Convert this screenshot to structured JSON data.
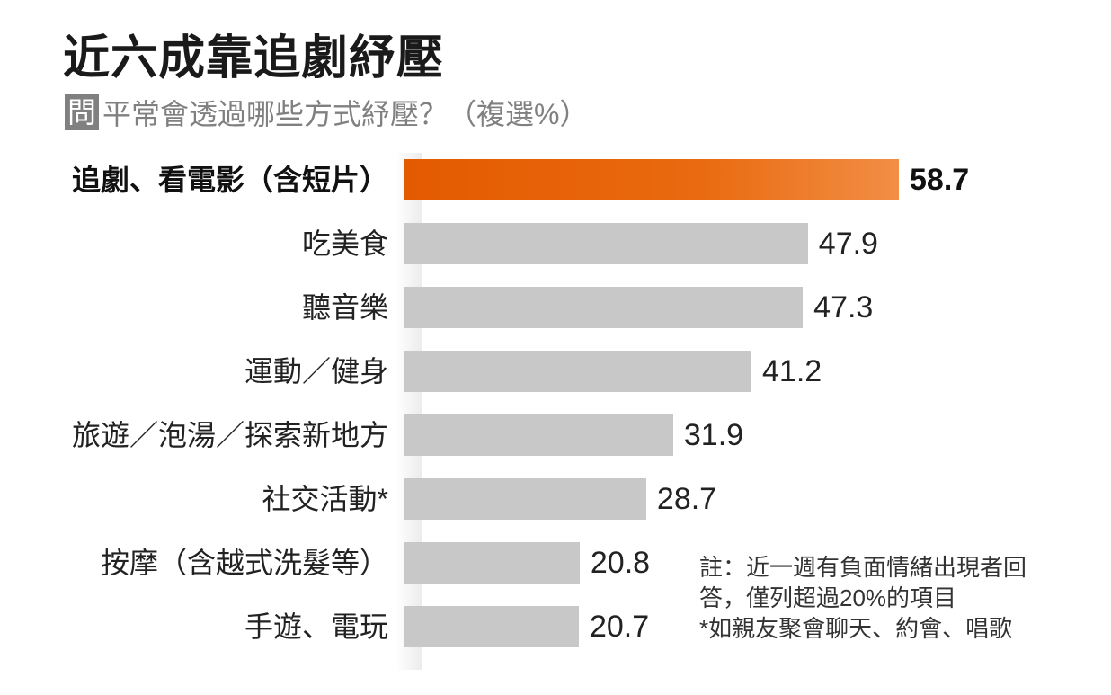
{
  "chart_data": {
    "type": "bar",
    "orientation": "horizontal",
    "title": "近六成靠追劇紓壓",
    "question_marker": "問",
    "subtitle": "平常會透過哪些方式紓壓？（複選%）",
    "categories": [
      "追劇、看電影（含短片）",
      "吃美食",
      "聽音樂",
      "運動／健身",
      "旅遊／泡湯／探索新地方",
      "社交活動*",
      "按摩（含越式洗髮等）",
      "手遊、電玩"
    ],
    "values": [
      58.7,
      47.9,
      47.3,
      41.2,
      31.9,
      28.7,
      20.8,
      20.7
    ],
    "value_labels": [
      "58.7",
      "47.9",
      "47.3",
      "41.2",
      "31.9",
      "28.7",
      "20.8",
      "20.7"
    ],
    "highlight_index": 0,
    "xlim": [
      0,
      58.7
    ],
    "grid": false,
    "colors": {
      "highlight": "#e96a10",
      "default": "#c8c8c8"
    },
    "notes": [
      "註：近一週有負面情緒出現者回",
      "答，僅列超過20%的項目",
      "*如親友聚會聊天、約會、唱歌"
    ]
  }
}
